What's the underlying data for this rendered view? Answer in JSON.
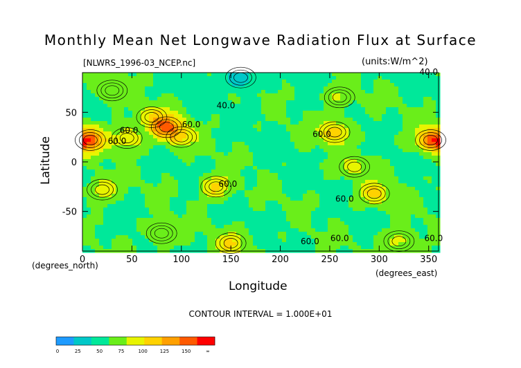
{
  "chart_data": {
    "type": "heatmap",
    "title": "Monthly Mean Net Longwave Radiation Flux at Surface",
    "file_label": "[NLWRS_1996-03_NCEP.nc]",
    "units_label": "(units:W/m^2)",
    "xlabel": "Longitude",
    "ylabel": "Latitude",
    "x_unit_label": "(degrees_east)",
    "y_unit_label": "(degrees_north)",
    "xlim": [
      0,
      360
    ],
    "ylim": [
      -90,
      90
    ],
    "x_ticks": [
      0,
      50,
      100,
      150,
      200,
      250,
      300,
      350
    ],
    "y_ticks": [
      50,
      0,
      -50
    ],
    "contour_interval_label": "CONTOUR INTERVAL = 1.000E+01",
    "contour_labels": [
      "40.0",
      "40.0",
      "60.0",
      "60.0",
      "60.0",
      "60.0",
      "60.0",
      "60.0",
      "60.0",
      "60.0",
      "60.0"
    ],
    "colorbar": {
      "tick_labels": [
        "0",
        "25",
        "50",
        "75",
        "100",
        "125",
        "150",
        "∞"
      ],
      "colors": [
        "#1e9bff",
        "#00c8c8",
        "#00e89a",
        "#6aee1a",
        "#e8f400",
        "#ffd200",
        "#ffa000",
        "#ff5a00",
        "#ff0000"
      ]
    },
    "features": [
      {
        "lon": 8,
        "lat": 22,
        "value": 135
      },
      {
        "lon": 45,
        "lat": 24,
        "value": 105
      },
      {
        "lon": 85,
        "lat": 35,
        "value": 140
      },
      {
        "lon": 70,
        "lat": 45,
        "value": 95
      },
      {
        "lon": 100,
        "lat": 25,
        "value": 95
      },
      {
        "lon": 255,
        "lat": 30,
        "value": 115
      },
      {
        "lon": 352,
        "lat": 22,
        "value": 125
      },
      {
        "lon": 135,
        "lat": -25,
        "value": 110
      },
      {
        "lon": 20,
        "lat": -28,
        "value": 100
      },
      {
        "lon": 295,
        "lat": -32,
        "value": 105
      },
      {
        "lon": 275,
        "lat": -5,
        "value": 85
      },
      {
        "lon": 150,
        "lat": -82,
        "value": 100
      },
      {
        "lon": 320,
        "lat": -80,
        "value": 95
      },
      {
        "lon": 80,
        "lat": -72,
        "value": 90
      },
      {
        "lon": 260,
        "lat": 65,
        "value": 85
      },
      {
        "lon": 30,
        "lat": 72,
        "value": 85
      },
      {
        "lon": 160,
        "lat": 85,
        "value": 20
      }
    ]
  }
}
